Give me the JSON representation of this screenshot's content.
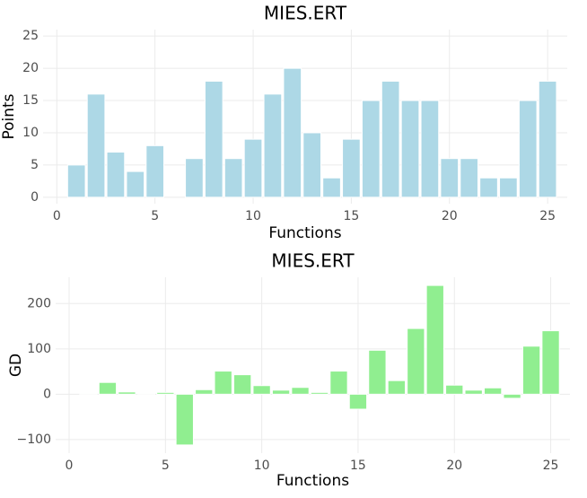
{
  "chart_data": [
    {
      "type": "bar",
      "title": "MIES.ERT",
      "x_label": "Functions",
      "y_label": "Points",
      "color": "#add8e6",
      "x": [
        1,
        2,
        3,
        4,
        5,
        6,
        7,
        8,
        9,
        10,
        11,
        12,
        13,
        14,
        15,
        16,
        17,
        18,
        19,
        20,
        21,
        22,
        23,
        24,
        25
      ],
      "values": [
        5,
        16,
        7,
        4,
        8,
        0,
        6,
        18,
        6,
        9,
        16,
        20,
        10,
        3,
        9,
        15,
        18,
        15,
        15,
        6,
        6,
        3,
        3,
        15,
        18
      ],
      "xlim": [
        -0.7,
        26
      ],
      "xticks": [
        0,
        5,
        10,
        15,
        20,
        25
      ],
      "ylim": [
        -1,
        26
      ],
      "yticks": [
        0,
        5,
        10,
        15,
        20,
        25
      ],
      "grid": true
    },
    {
      "type": "bar",
      "title": "MIES.ERT",
      "x_label": "Functions",
      "y_label": "GD",
      "color": "#90ee90",
      "x": [
        1,
        2,
        3,
        4,
        5,
        6,
        7,
        8,
        9,
        10,
        11,
        12,
        13,
        14,
        15,
        16,
        17,
        18,
        19,
        20,
        21,
        22,
        23,
        24,
        25
      ],
      "values": [
        2,
        26,
        5,
        2,
        4,
        -112,
        10,
        51,
        43,
        19,
        9,
        15,
        4,
        51,
        -33,
        97,
        30,
        145,
        240,
        20,
        9,
        14,
        -9,
        106,
        140
      ],
      "xlim": [
        -0.7,
        26
      ],
      "xticks": [
        0,
        5,
        10,
        15,
        20,
        25
      ],
      "ylim": [
        -130,
        258
      ],
      "yticks": [
        {
          "value": -100,
          "label": "−100"
        },
        0,
        100,
        200
      ],
      "grid": true
    }
  ]
}
